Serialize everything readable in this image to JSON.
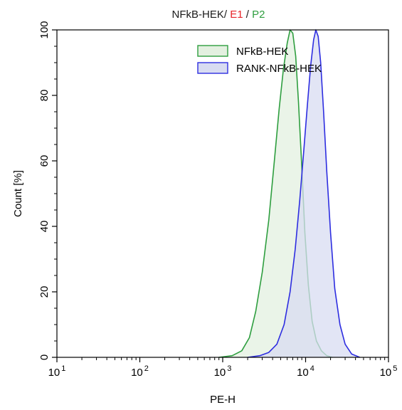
{
  "chart_data": {
    "type": "area",
    "title_parts": [
      {
        "text": "NFkB-HEK/ ",
        "color": "#1a1a1a"
      },
      {
        "text": "E1",
        "color": "#e8252a"
      },
      {
        "text": " / ",
        "color": "#1a1a1a"
      },
      {
        "text": "P2",
        "color": "#2e9e3f"
      }
    ],
    "xlabel": "PE-H",
    "ylabel": "Count [%]",
    "x_scale": "log",
    "xlim": [
      10,
      100000
    ],
    "ylim": [
      0,
      100
    ],
    "x_ticks": [
      {
        "base": "10",
        "exp": "1",
        "value": 10
      },
      {
        "base": "10",
        "exp": "2",
        "value": 100
      },
      {
        "base": "10",
        "exp": "3",
        "value": 1000
      },
      {
        "base": "10",
        "exp": "4",
        "value": 10000
      },
      {
        "base": "10",
        "exp": "5",
        "value": 100000
      }
    ],
    "y_ticks": [
      "0",
      "20",
      "40",
      "60",
      "80",
      "100"
    ],
    "legend_position": "top-right",
    "series": [
      {
        "name": "NFkB-HEK",
        "stroke": "#2e9e3f",
        "fill": "#e3f0e0",
        "x": [
          900,
          1300,
          1700,
          2100,
          2500,
          3000,
          3600,
          4200,
          4800,
          5400,
          6000,
          6500,
          7000,
          7600,
          8200,
          9000,
          9800,
          10800,
          12000,
          13500,
          15500,
          18000,
          21000
        ],
        "y": [
          0,
          0.5,
          2,
          6,
          14,
          26,
          42,
          60,
          76,
          88,
          96,
          100,
          99,
          92,
          78,
          58,
          38,
          22,
          11,
          5,
          2,
          0.5,
          0
        ]
      },
      {
        "name": "RANK-NFkB-HEK",
        "stroke": "#2d2de0",
        "fill": "#d8dcf1",
        "x": [
          2000,
          2800,
          3600,
          4500,
          5500,
          6500,
          7500,
          8500,
          9500,
          10500,
          11500,
          12500,
          13300,
          14200,
          15200,
          16500,
          18000,
          20000,
          22500,
          26000,
          30000,
          36000,
          45000
        ],
        "y": [
          0,
          0.5,
          1.5,
          4,
          10,
          20,
          33,
          48,
          63,
          77,
          89,
          97,
          100,
          98,
          90,
          75,
          57,
          38,
          21,
          10,
          4,
          1,
          0
        ]
      }
    ]
  }
}
